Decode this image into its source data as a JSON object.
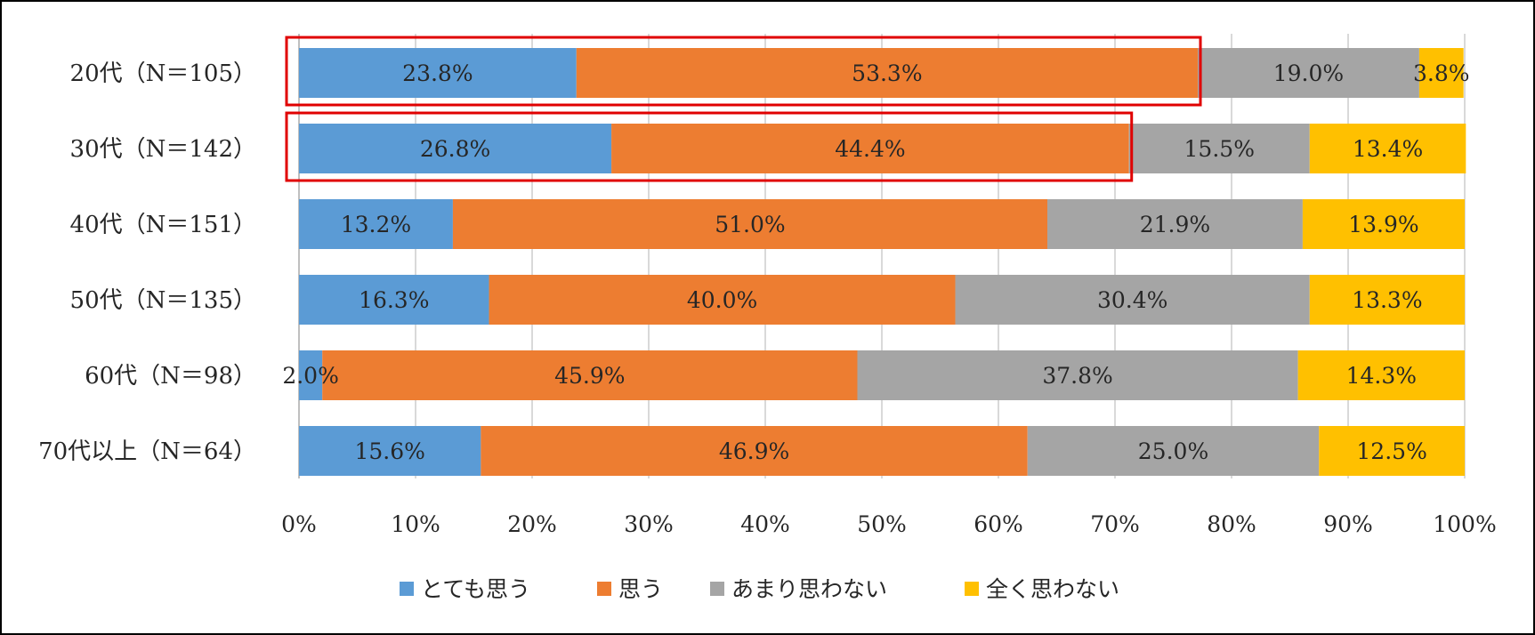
{
  "chart_data": {
    "type": "bar",
    "orientation": "horizontal",
    "stacked": true,
    "title": "",
    "xlabel": "",
    "ylabel": "",
    "xlim": [
      0,
      100
    ],
    "grid": "vertical",
    "legend_position": "bottom",
    "x_ticks": [
      "0%",
      "10%",
      "20%",
      "30%",
      "40%",
      "50%",
      "60%",
      "70%",
      "80%",
      "90%",
      "100%"
    ],
    "categories": [
      "20代（N＝105）",
      "30代（N＝142）",
      "40代（N＝151）",
      "50代（N＝135）",
      "60代（N＝98）",
      "70代以上（N＝64）"
    ],
    "series": [
      {
        "name": "とても思う",
        "color": "#5B9BD5",
        "values": [
          23.8,
          26.8,
          13.2,
          16.3,
          2.0,
          15.6
        ],
        "labels": [
          "23.8%",
          "26.8%",
          "13.2%",
          "16.3%",
          "2.0%",
          "15.6%"
        ]
      },
      {
        "name": "思う",
        "color": "#ED7D31",
        "values": [
          53.3,
          44.4,
          51.0,
          40.0,
          45.9,
          46.9
        ],
        "labels": [
          "53.3%",
          "44.4%",
          "51.0%",
          "40.0%",
          "45.9%",
          "46.9%"
        ]
      },
      {
        "name": "あまり思わない",
        "color": "#A5A5A5",
        "values": [
          19.0,
          15.5,
          21.9,
          30.4,
          37.8,
          25.0
        ],
        "labels": [
          "19.0%",
          "15.5%",
          "21.9%",
          "30.4%",
          "37.8%",
          "25.0%"
        ]
      },
      {
        "name": "全く思わない",
        "color": "#FFC000",
        "values": [
          3.8,
          13.4,
          13.9,
          13.3,
          14.3,
          12.5
        ],
        "labels": [
          "3.8%",
          "13.4%",
          "13.9%",
          "13.3%",
          "14.3%",
          "12.5%"
        ]
      }
    ],
    "highlight_boxes": [
      {
        "category_index": 0,
        "series_indices": [
          0,
          1
        ],
        "color": "#E00000"
      },
      {
        "category_index": 1,
        "series_indices": [
          0,
          1
        ],
        "color": "#E00000"
      }
    ]
  }
}
